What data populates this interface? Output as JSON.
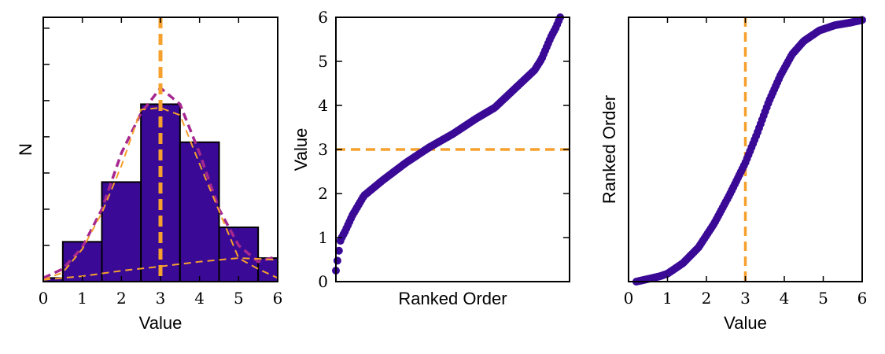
{
  "colors": {
    "primary": "#3a0a96",
    "orange": "#f6a02d",
    "magenta": "#a6288f",
    "axis": "#000000",
    "background": "#ffffff"
  },
  "chart_data": [
    {
      "type": "bar",
      "name": "histogram",
      "title": "",
      "xlabel": "Value",
      "ylabel": "N",
      "xlim": [
        0,
        6
      ],
      "ylim": [
        0,
        7.3
      ],
      "xticks": [
        0,
        1,
        2,
        3,
        4,
        5,
        6
      ],
      "bin_edges": [
        0,
        0.5,
        1.5,
        2.5,
        3.5,
        4.5,
        5.5,
        6
      ],
      "values": [
        0.1,
        1.1,
        2.75,
        4.9,
        3.85,
        1.5,
        0.65
      ],
      "vline_x": 3,
      "overlay_curves": [
        {
          "name": "total model",
          "style": "dashed-magenta",
          "x": [
            0,
            0.5,
            1,
            1.5,
            2,
            2.5,
            3,
            3.5,
            4,
            4.5,
            5,
            5.5,
            6
          ],
          "y": [
            0.1,
            0.35,
            0.95,
            2.0,
            3.55,
            4.65,
            5.35,
            4.9,
            3.55,
            2.0,
            1.0,
            0.55,
            0.7
          ]
        },
        {
          "name": "peak component",
          "style": "dashed-orange-thin",
          "x": [
            0,
            0.5,
            1,
            1.5,
            2,
            2.5,
            3,
            3.5,
            4,
            4.5,
            5,
            5.5,
            6
          ],
          "y": [
            0.05,
            0.25,
            0.9,
            1.9,
            3.2,
            4.75,
            4.8,
            4.6,
            3.25,
            1.95,
            0.65,
            0.35,
            0.1
          ]
        },
        {
          "name": "broad component",
          "style": "dashed-orange-thin",
          "x": [
            0,
            1,
            2,
            3,
            4,
            5,
            5.5,
            6
          ],
          "y": [
            0.05,
            0.15,
            0.3,
            0.42,
            0.55,
            0.65,
            0.63,
            0.6
          ]
        }
      ]
    },
    {
      "type": "scatter",
      "name": "ranked-values",
      "title": "",
      "xlabel": "Ranked Order",
      "ylabel": "Value",
      "xlim": [
        0,
        1
      ],
      "ylim": [
        0,
        6
      ],
      "yticks": [
        0,
        1,
        2,
        3,
        4,
        5,
        6
      ],
      "hline_y": 3,
      "n_points": 150,
      "curve": {
        "x": [
          0,
          0.01,
          0.02,
          0.04,
          0.07,
          0.12,
          0.2,
          0.3,
          0.4,
          0.5,
          0.6,
          0.68,
          0.75,
          0.8,
          0.85,
          0.88,
          0.9,
          0.92,
          0.94,
          0.96
        ],
        "y": [
          0.25,
          0.6,
          0.95,
          1.15,
          1.5,
          1.95,
          2.3,
          2.7,
          3.05,
          3.35,
          3.7,
          3.95,
          4.3,
          4.55,
          4.8,
          5.05,
          5.3,
          5.55,
          5.75,
          6.0
        ]
      }
    },
    {
      "type": "scatter",
      "name": "cumulative",
      "title": "",
      "xlabel": "Value",
      "ylabel": "Ranked Order",
      "xlim": [
        0,
        6
      ],
      "ylim": [
        0,
        1
      ],
      "xticks": [
        0,
        1,
        2,
        3,
        4,
        5,
        6
      ],
      "vline_x": 3,
      "n_points": 150,
      "curve": {
        "x": [
          0.2,
          0.5,
          0.8,
          1.0,
          1.4,
          1.8,
          2.2,
          2.6,
          3.0,
          3.3,
          3.6,
          3.9,
          4.2,
          4.5,
          4.9,
          5.3,
          5.7,
          6.0
        ],
        "y": [
          0.0,
          0.01,
          0.02,
          0.03,
          0.07,
          0.13,
          0.22,
          0.33,
          0.45,
          0.56,
          0.68,
          0.78,
          0.86,
          0.91,
          0.95,
          0.97,
          0.98,
          0.99
        ]
      }
    }
  ]
}
